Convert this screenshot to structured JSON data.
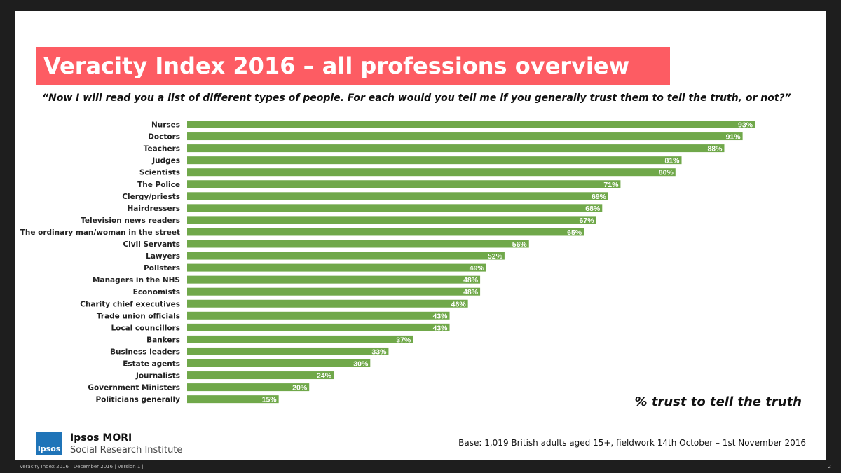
{
  "title": "Veracity Index 2016 – all professions overview",
  "question": "“Now I will read you a list of different types of people. For each would you tell me if you generally trust them to tell the truth, or not?”",
  "metric_label": "% trust to tell the truth",
  "base_note": "Base: 1,019 British adults aged 15+, fieldwork 14th October – 1st November 2016",
  "brand": {
    "logo_text": "Ipsos",
    "name": "Ipsos MORI",
    "subtitle": "Social Research Institute"
  },
  "footer": {
    "text": "Veracity Index 2016 | December 2016 | Version 1 |",
    "page": "2"
  },
  "colors": {
    "bar": "#70a84a",
    "title_bg": "#fd5c63",
    "logo": "#1f74b8"
  },
  "chart_data": {
    "type": "bar",
    "orientation": "horizontal",
    "categories": [
      "Nurses",
      "Doctors",
      "Teachers",
      "Judges",
      "Scientists",
      "The Police",
      "Clergy/priests",
      "Hairdressers",
      "Television news readers",
      "The ordinary man/woman in the street",
      "Civil Servants",
      "Lawyers",
      "Pollsters",
      "Managers in the NHS",
      "Economists",
      "Charity chief executives",
      "Trade union officials",
      "Local councillors",
      "Bankers",
      "Business leaders",
      "Estate agents",
      "Journalists",
      "Government Ministers",
      "Politicians generally"
    ],
    "values": [
      93,
      91,
      88,
      81,
      80,
      71,
      69,
      68,
      67,
      65,
      56,
      52,
      49,
      48,
      48,
      46,
      43,
      43,
      37,
      33,
      30,
      24,
      20,
      15
    ],
    "value_suffix": "%",
    "xlim": [
      0,
      100
    ],
    "grid": false,
    "legend": false
  }
}
